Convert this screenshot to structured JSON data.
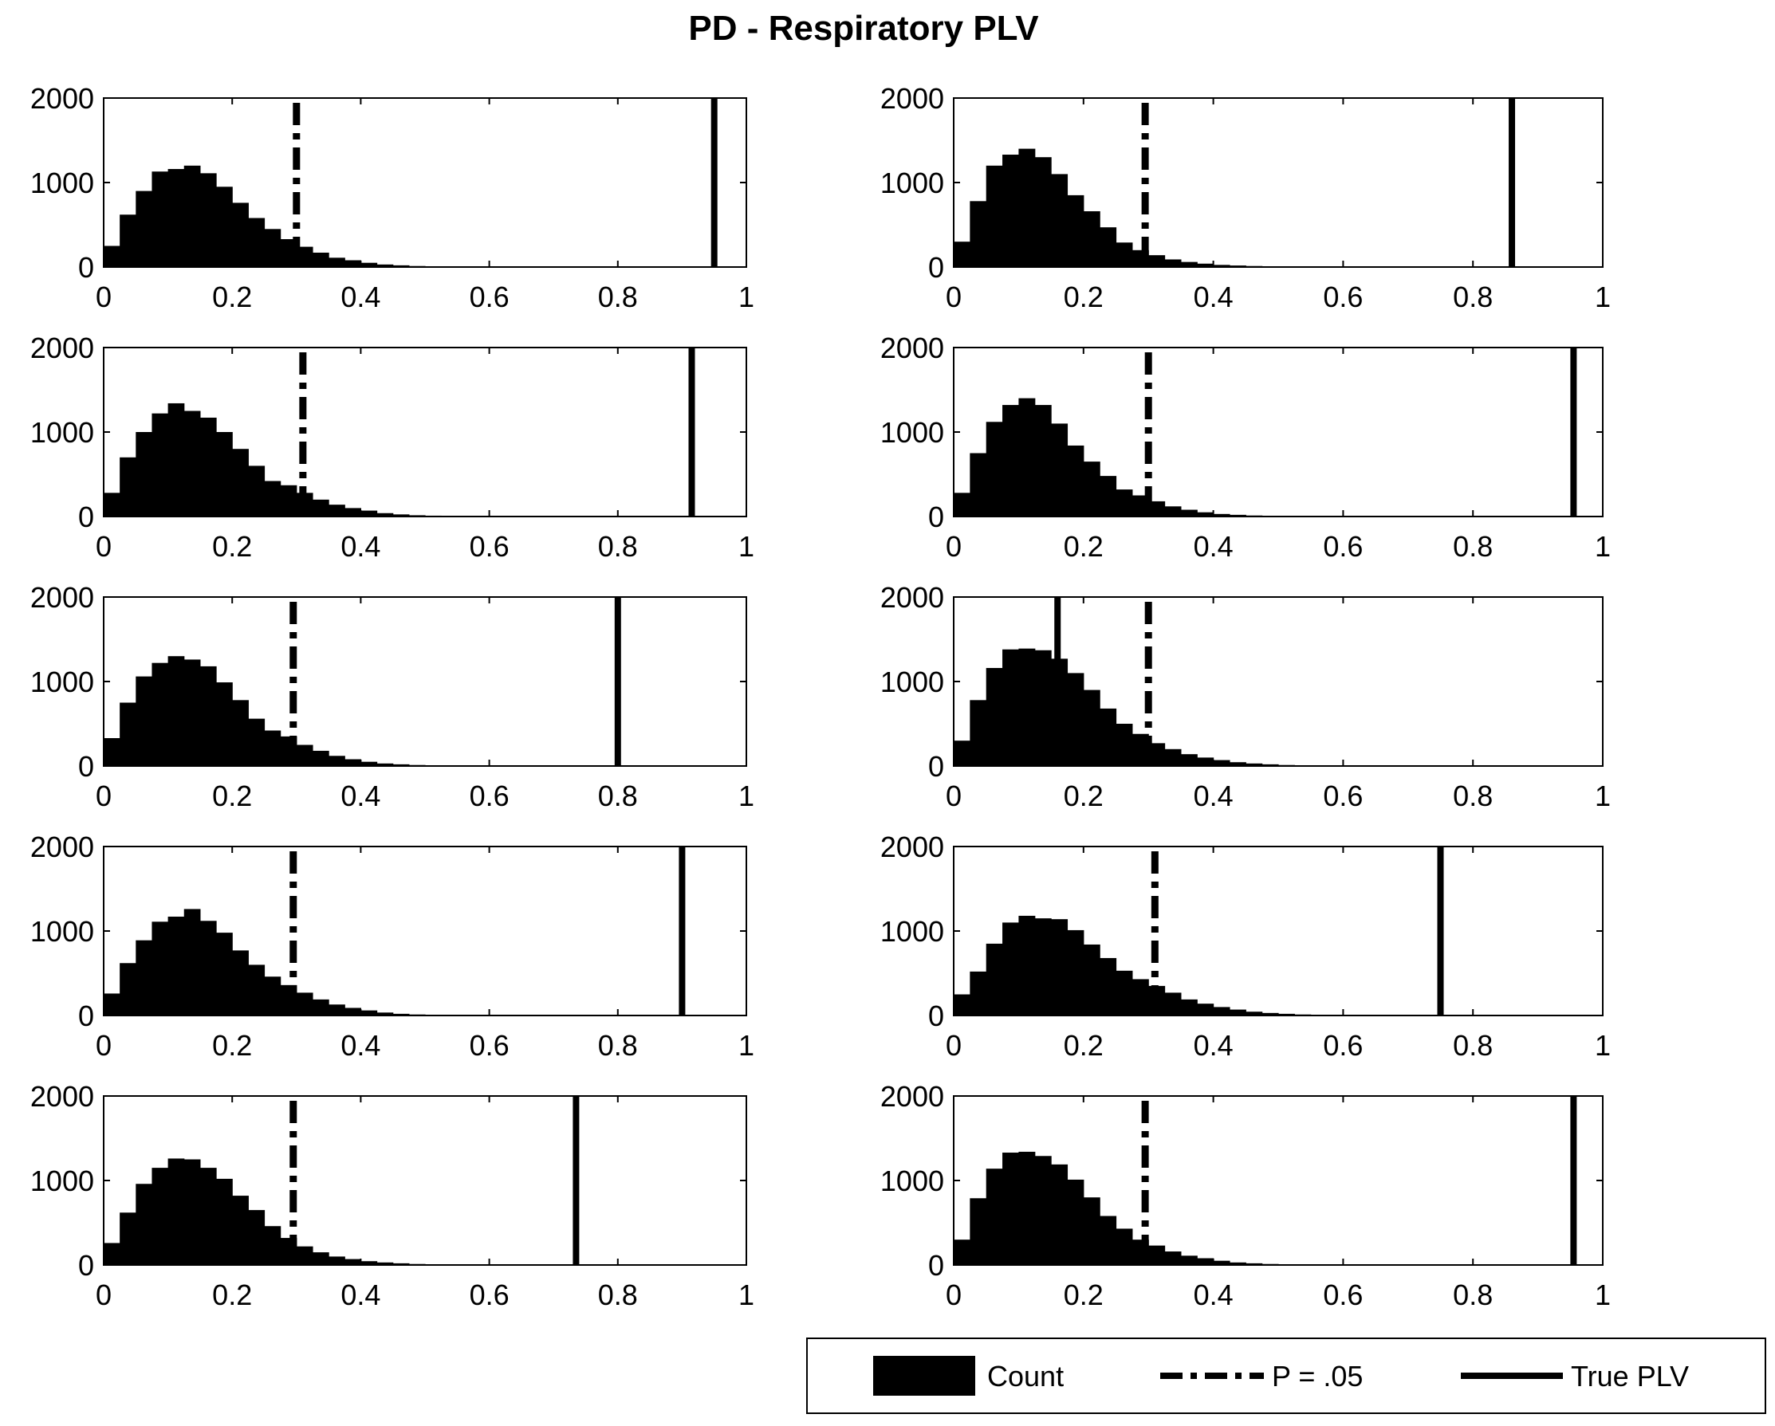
{
  "chart_data": {
    "title": "PD - Respiratory PLV",
    "layout": {
      "rows": 5,
      "cols": 2
    },
    "legend": {
      "placement": "bottom-right",
      "entries": [
        {
          "label": "Count",
          "style": "filled-bar"
        },
        {
          "label": "P = .05",
          "style": "dash-dot-line"
        },
        {
          "label": "True PLV",
          "style": "solid-line"
        }
      ]
    },
    "panels": [
      {
        "type": "bar",
        "xlim": [
          0,
          1
        ],
        "ylim": [
          0,
          2000
        ],
        "xticks": [
          "0",
          "0.2",
          "0.4",
          "0.6",
          "0.8",
          "1"
        ],
        "yticks": [
          "0",
          "1000",
          "2000"
        ],
        "bin_width": 0.025,
        "bin_start": 0,
        "values": [
          250,
          620,
          900,
          1130,
          1160,
          1200,
          1110,
          950,
          760,
          580,
          450,
          330,
          240,
          170,
          110,
          80,
          50,
          30,
          20,
          12,
          8,
          5
        ],
        "p05": 0.3,
        "true_plv": 0.95
      },
      {
        "type": "bar",
        "xlim": [
          0,
          1
        ],
        "ylim": [
          0,
          2000
        ],
        "xticks": [
          "0",
          "0.2",
          "0.4",
          "0.6",
          "0.8",
          "1"
        ],
        "yticks": [
          "0",
          "1000",
          "2000"
        ],
        "bin_width": 0.025,
        "bin_start": 0,
        "values": [
          300,
          780,
          1200,
          1330,
          1400,
          1300,
          1100,
          850,
          660,
          470,
          290,
          200,
          140,
          90,
          60,
          40,
          25,
          18,
          12,
          8,
          5,
          4,
          3
        ],
        "p05": 0.295,
        "true_plv": 0.86
      },
      {
        "type": "bar",
        "xlim": [
          0,
          1
        ],
        "ylim": [
          0,
          2000
        ],
        "xticks": [
          "0",
          "0.2",
          "0.4",
          "0.6",
          "0.8",
          "1"
        ],
        "yticks": [
          "0",
          "1000",
          "2000"
        ],
        "bin_width": 0.025,
        "bin_start": 0,
        "values": [
          280,
          700,
          1000,
          1220,
          1340,
          1250,
          1170,
          1000,
          800,
          600,
          420,
          370,
          280,
          200,
          140,
          100,
          70,
          40,
          25,
          15,
          10,
          6
        ],
        "p05": 0.31,
        "true_plv": 0.915
      },
      {
        "type": "bar",
        "xlim": [
          0,
          1
        ],
        "ylim": [
          0,
          2000
        ],
        "xticks": [
          "0",
          "0.2",
          "0.4",
          "0.6",
          "0.8",
          "1"
        ],
        "yticks": [
          "0",
          "1000",
          "2000"
        ],
        "bin_width": 0.025,
        "bin_start": 0,
        "values": [
          280,
          750,
          1120,
          1320,
          1400,
          1320,
          1100,
          840,
          650,
          480,
          320,
          250,
          180,
          120,
          80,
          50,
          30,
          20,
          12,
          8,
          5,
          3,
          2
        ],
        "p05": 0.3,
        "true_plv": 0.955
      },
      {
        "type": "bar",
        "xlim": [
          0,
          1
        ],
        "ylim": [
          0,
          2000
        ],
        "xticks": [
          "0",
          "0.2",
          "0.4",
          "0.6",
          "0.8",
          "1"
        ],
        "yticks": [
          "0",
          "1000",
          "2000"
        ],
        "bin_width": 0.025,
        "bin_start": 0,
        "values": [
          330,
          750,
          1060,
          1220,
          1300,
          1260,
          1180,
          990,
          780,
          560,
          420,
          350,
          250,
          180,
          120,
          80,
          50,
          30,
          20,
          12,
          8
        ],
        "p05": 0.295,
        "true_plv": 0.8
      },
      {
        "type": "bar",
        "xlim": [
          0,
          1
        ],
        "ylim": [
          0,
          2000
        ],
        "xticks": [
          "0",
          "0.2",
          "0.4",
          "0.6",
          "0.8",
          "1"
        ],
        "yticks": [
          "0",
          "1000",
          "2000"
        ],
        "bin_width": 0.025,
        "bin_start": 0,
        "values": [
          300,
          780,
          1160,
          1380,
          1390,
          1370,
          1270,
          1100,
          900,
          680,
          500,
          380,
          270,
          200,
          140,
          100,
          70,
          45,
          30,
          20,
          12,
          8,
          5
        ],
        "p05": 0.3,
        "true_plv": 0.16
      },
      {
        "type": "bar",
        "xlim": [
          0,
          1
        ],
        "ylim": [
          0,
          2000
        ],
        "xticks": [
          "0",
          "0.2",
          "0.4",
          "0.6",
          "0.8",
          "1"
        ],
        "yticks": [
          "0",
          "1000",
          "2000"
        ],
        "bin_width": 0.025,
        "bin_start": 0,
        "values": [
          260,
          620,
          890,
          1110,
          1170,
          1260,
          1120,
          980,
          770,
          600,
          460,
          360,
          270,
          190,
          130,
          90,
          60,
          35,
          20,
          12
        ],
        "p05": 0.295,
        "true_plv": 0.9
      },
      {
        "type": "bar",
        "xlim": [
          0,
          1
        ],
        "ylim": [
          0,
          2000
        ],
        "xticks": [
          "0",
          "0.2",
          "0.4",
          "0.6",
          "0.8",
          "1"
        ],
        "yticks": [
          "0",
          "1000",
          "2000"
        ],
        "bin_width": 0.025,
        "bin_start": 0,
        "values": [
          250,
          520,
          850,
          1100,
          1180,
          1150,
          1140,
          1010,
          840,
          680,
          530,
          430,
          350,
          270,
          190,
          140,
          100,
          70,
          45,
          30,
          20,
          12
        ],
        "p05": 0.31,
        "true_plv": 0.75
      },
      {
        "type": "bar",
        "xlim": [
          0,
          1
        ],
        "ylim": [
          0,
          2000
        ],
        "xticks": [
          "0",
          "0.2",
          "0.4",
          "0.6",
          "0.8",
          "1"
        ],
        "yticks": [
          "0",
          "1000",
          "2000"
        ],
        "bin_width": 0.025,
        "bin_start": 0,
        "values": [
          260,
          620,
          960,
          1150,
          1260,
          1250,
          1150,
          1020,
          820,
          650,
          460,
          320,
          220,
          150,
          100,
          70,
          45,
          30,
          20,
          12,
          8
        ],
        "p05": 0.295,
        "true_plv": 0.735
      },
      {
        "type": "bar",
        "xlim": [
          0,
          1
        ],
        "ylim": [
          0,
          2000
        ],
        "xticks": [
          "0",
          "0.2",
          "0.4",
          "0.6",
          "0.8",
          "1"
        ],
        "yticks": [
          "0",
          "1000",
          "2000"
        ],
        "bin_width": 0.025,
        "bin_start": 0,
        "values": [
          300,
          790,
          1140,
          1330,
          1340,
          1290,
          1190,
          1010,
          800,
          580,
          430,
          300,
          230,
          160,
          110,
          80,
          50,
          30,
          20,
          12,
          8,
          5
        ],
        "p05": 0.295,
        "true_plv": 0.955
      }
    ]
  }
}
